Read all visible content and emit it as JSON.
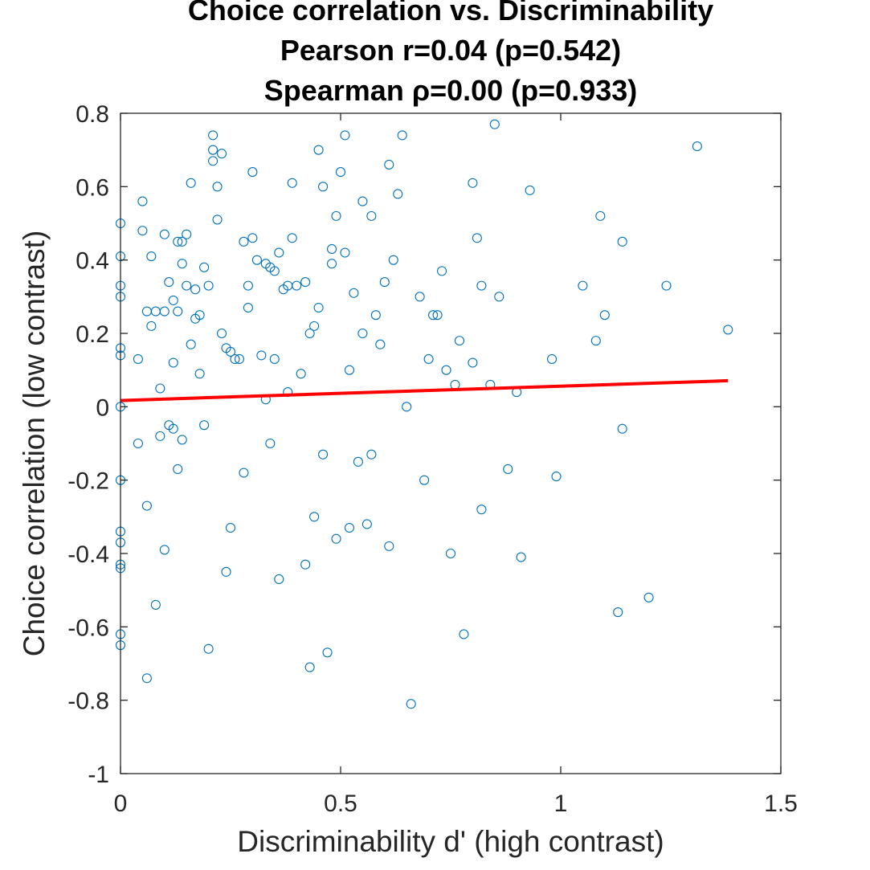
{
  "chart_data": {
    "type": "scatter",
    "title": "Choice correlation vs. Discriminability",
    "subtitle_lines": [
      "Pearson r=0.04 (p=0.542)",
      "Spearman ρ=0.00 (p=0.933)"
    ],
    "xlabel": "Discriminability d' (high contrast)",
    "ylabel": "Choice correlation (low contrast)",
    "xlim": [
      0,
      1.5
    ],
    "ylim": [
      -1,
      0.8
    ],
    "xticks": [
      0,
      0.5,
      1,
      1.5
    ],
    "xtick_labels": [
      "0",
      "0.5",
      "1",
      "1.5"
    ],
    "yticks": [
      -1,
      -0.8,
      -0.6,
      -0.4,
      -0.2,
      0,
      0.2,
      0.4,
      0.6,
      0.8
    ],
    "ytick_labels": [
      "-1",
      "-0.8",
      "-0.6",
      "-0.4",
      "-0.2",
      "0",
      "0.2",
      "0.4",
      "0.6",
      "0.8"
    ],
    "grid": false,
    "marker_color": "#0072BD",
    "fit_color": "#FF0000",
    "fit_line": {
      "x": [
        0,
        1.38
      ],
      "y": [
        0.017,
        0.071
      ]
    },
    "x": [
      0,
      0,
      0,
      0,
      0,
      0,
      0,
      0,
      0,
      0,
      0,
      0,
      0,
      0,
      0.04,
      0.04,
      0.05,
      0.05,
      0.06,
      0.06,
      0.06,
      0.07,
      0.07,
      0.08,
      0.08,
      0.09,
      0.09,
      0.1,
      0.1,
      0.1,
      0.11,
      0.11,
      0.12,
      0.12,
      0.12,
      0.13,
      0.13,
      0.13,
      0.14,
      0.14,
      0.14,
      0.15,
      0.15,
      0.16,
      0.16,
      0.17,
      0.17,
      0.18,
      0.18,
      0.19,
      0.19,
      0.2,
      0.2,
      0.21,
      0.21,
      0.21,
      0.22,
      0.22,
      0.23,
      0.23,
      0.24,
      0.24,
      0.25,
      0.25,
      0.26,
      0.27,
      0.28,
      0.28,
      0.29,
      0.29,
      0.3,
      0.3,
      0.31,
      0.32,
      0.33,
      0.33,
      0.34,
      0.34,
      0.35,
      0.35,
      0.36,
      0.36,
      0.37,
      0.38,
      0.38,
      0.39,
      0.39,
      0.4,
      0.41,
      0.42,
      0.42,
      0.43,
      0.43,
      0.44,
      0.44,
      0.45,
      0.45,
      0.46,
      0.46,
      0.47,
      0.48,
      0.48,
      0.49,
      0.49,
      0.5,
      0.51,
      0.51,
      0.52,
      0.52,
      0.53,
      0.54,
      0.55,
      0.55,
      0.56,
      0.57,
      0.57,
      0.58,
      0.59,
      0.6,
      0.61,
      0.61,
      0.62,
      0.63,
      0.64,
      0.65,
      0.66,
      0.68,
      0.69,
      0.7,
      0.71,
      0.72,
      0.73,
      0.74,
      0.75,
      0.76,
      0.77,
      0.78,
      0.8,
      0.8,
      0.81,
      0.82,
      0.82,
      0.84,
      0.85,
      0.86,
      0.88,
      0.9,
      0.91,
      0.93,
      0.98,
      0.99,
      1.05,
      1.08,
      1.09,
      1.1,
      1.13,
      1.14,
      1.14,
      1.2,
      1.24,
      1.31,
      1.38
    ],
    "y": [
      0.5,
      0.41,
      0.33,
      0.3,
      0.16,
      0.14,
      0,
      -0.2,
      -0.34,
      -0.37,
      -0.43,
      -0.44,
      -0.62,
      -0.65,
      0.13,
      -0.1,
      0.56,
      0.48,
      0.26,
      -0.27,
      -0.74,
      0.41,
      0.22,
      0.26,
      -0.54,
      0.05,
      -0.08,
      0.47,
      0.26,
      -0.39,
      0.34,
      -0.05,
      0.29,
      0.12,
      -0.06,
      0.45,
      0.26,
      -0.17,
      0.45,
      0.39,
      -0.09,
      0.47,
      0.33,
      0.61,
      0.17,
      0.32,
      0.24,
      0.25,
      0.09,
      0.38,
      -0.05,
      0.33,
      -0.66,
      0.74,
      0.7,
      0.67,
      0.6,
      0.51,
      0.69,
      0.2,
      0.16,
      -0.45,
      0.15,
      -0.33,
      0.13,
      0.13,
      0.45,
      -0.18,
      0.33,
      0.27,
      0.64,
      0.46,
      0.4,
      0.14,
      0.39,
      0.02,
      0.38,
      -0.1,
      0.37,
      0.13,
      -0.47,
      0.42,
      0.32,
      0.33,
      0.04,
      0.46,
      0.61,
      0.33,
      0.09,
      -0.43,
      0.34,
      0.2,
      -0.71,
      -0.3,
      0.22,
      0.7,
      0.27,
      0.6,
      -0.13,
      -0.67,
      0.39,
      0.43,
      0.52,
      -0.36,
      0.64,
      0.74,
      0.42,
      0.1,
      -0.33,
      0.31,
      -0.15,
      0.56,
      0.2,
      -0.32,
      0.52,
      -0.13,
      0.25,
      0.17,
      0.34,
      -0.38,
      0.66,
      0.4,
      0.58,
      0.74,
      0,
      -0.81,
      0.3,
      -0.2,
      0.13,
      0.25,
      0.25,
      0.37,
      0.1,
      -0.4,
      0.06,
      0.18,
      -0.62,
      0.61,
      0.12,
      0.46,
      0.33,
      -0.28,
      0.06,
      0.77,
      0.3,
      -0.17,
      0.04,
      -0.41,
      0.59,
      0.13,
      -0.19,
      0.33,
      0.18,
      0.52,
      0.25,
      -0.56,
      0.45,
      -0.06,
      -0.52,
      0.33,
      0.71,
      0.21
    ]
  }
}
